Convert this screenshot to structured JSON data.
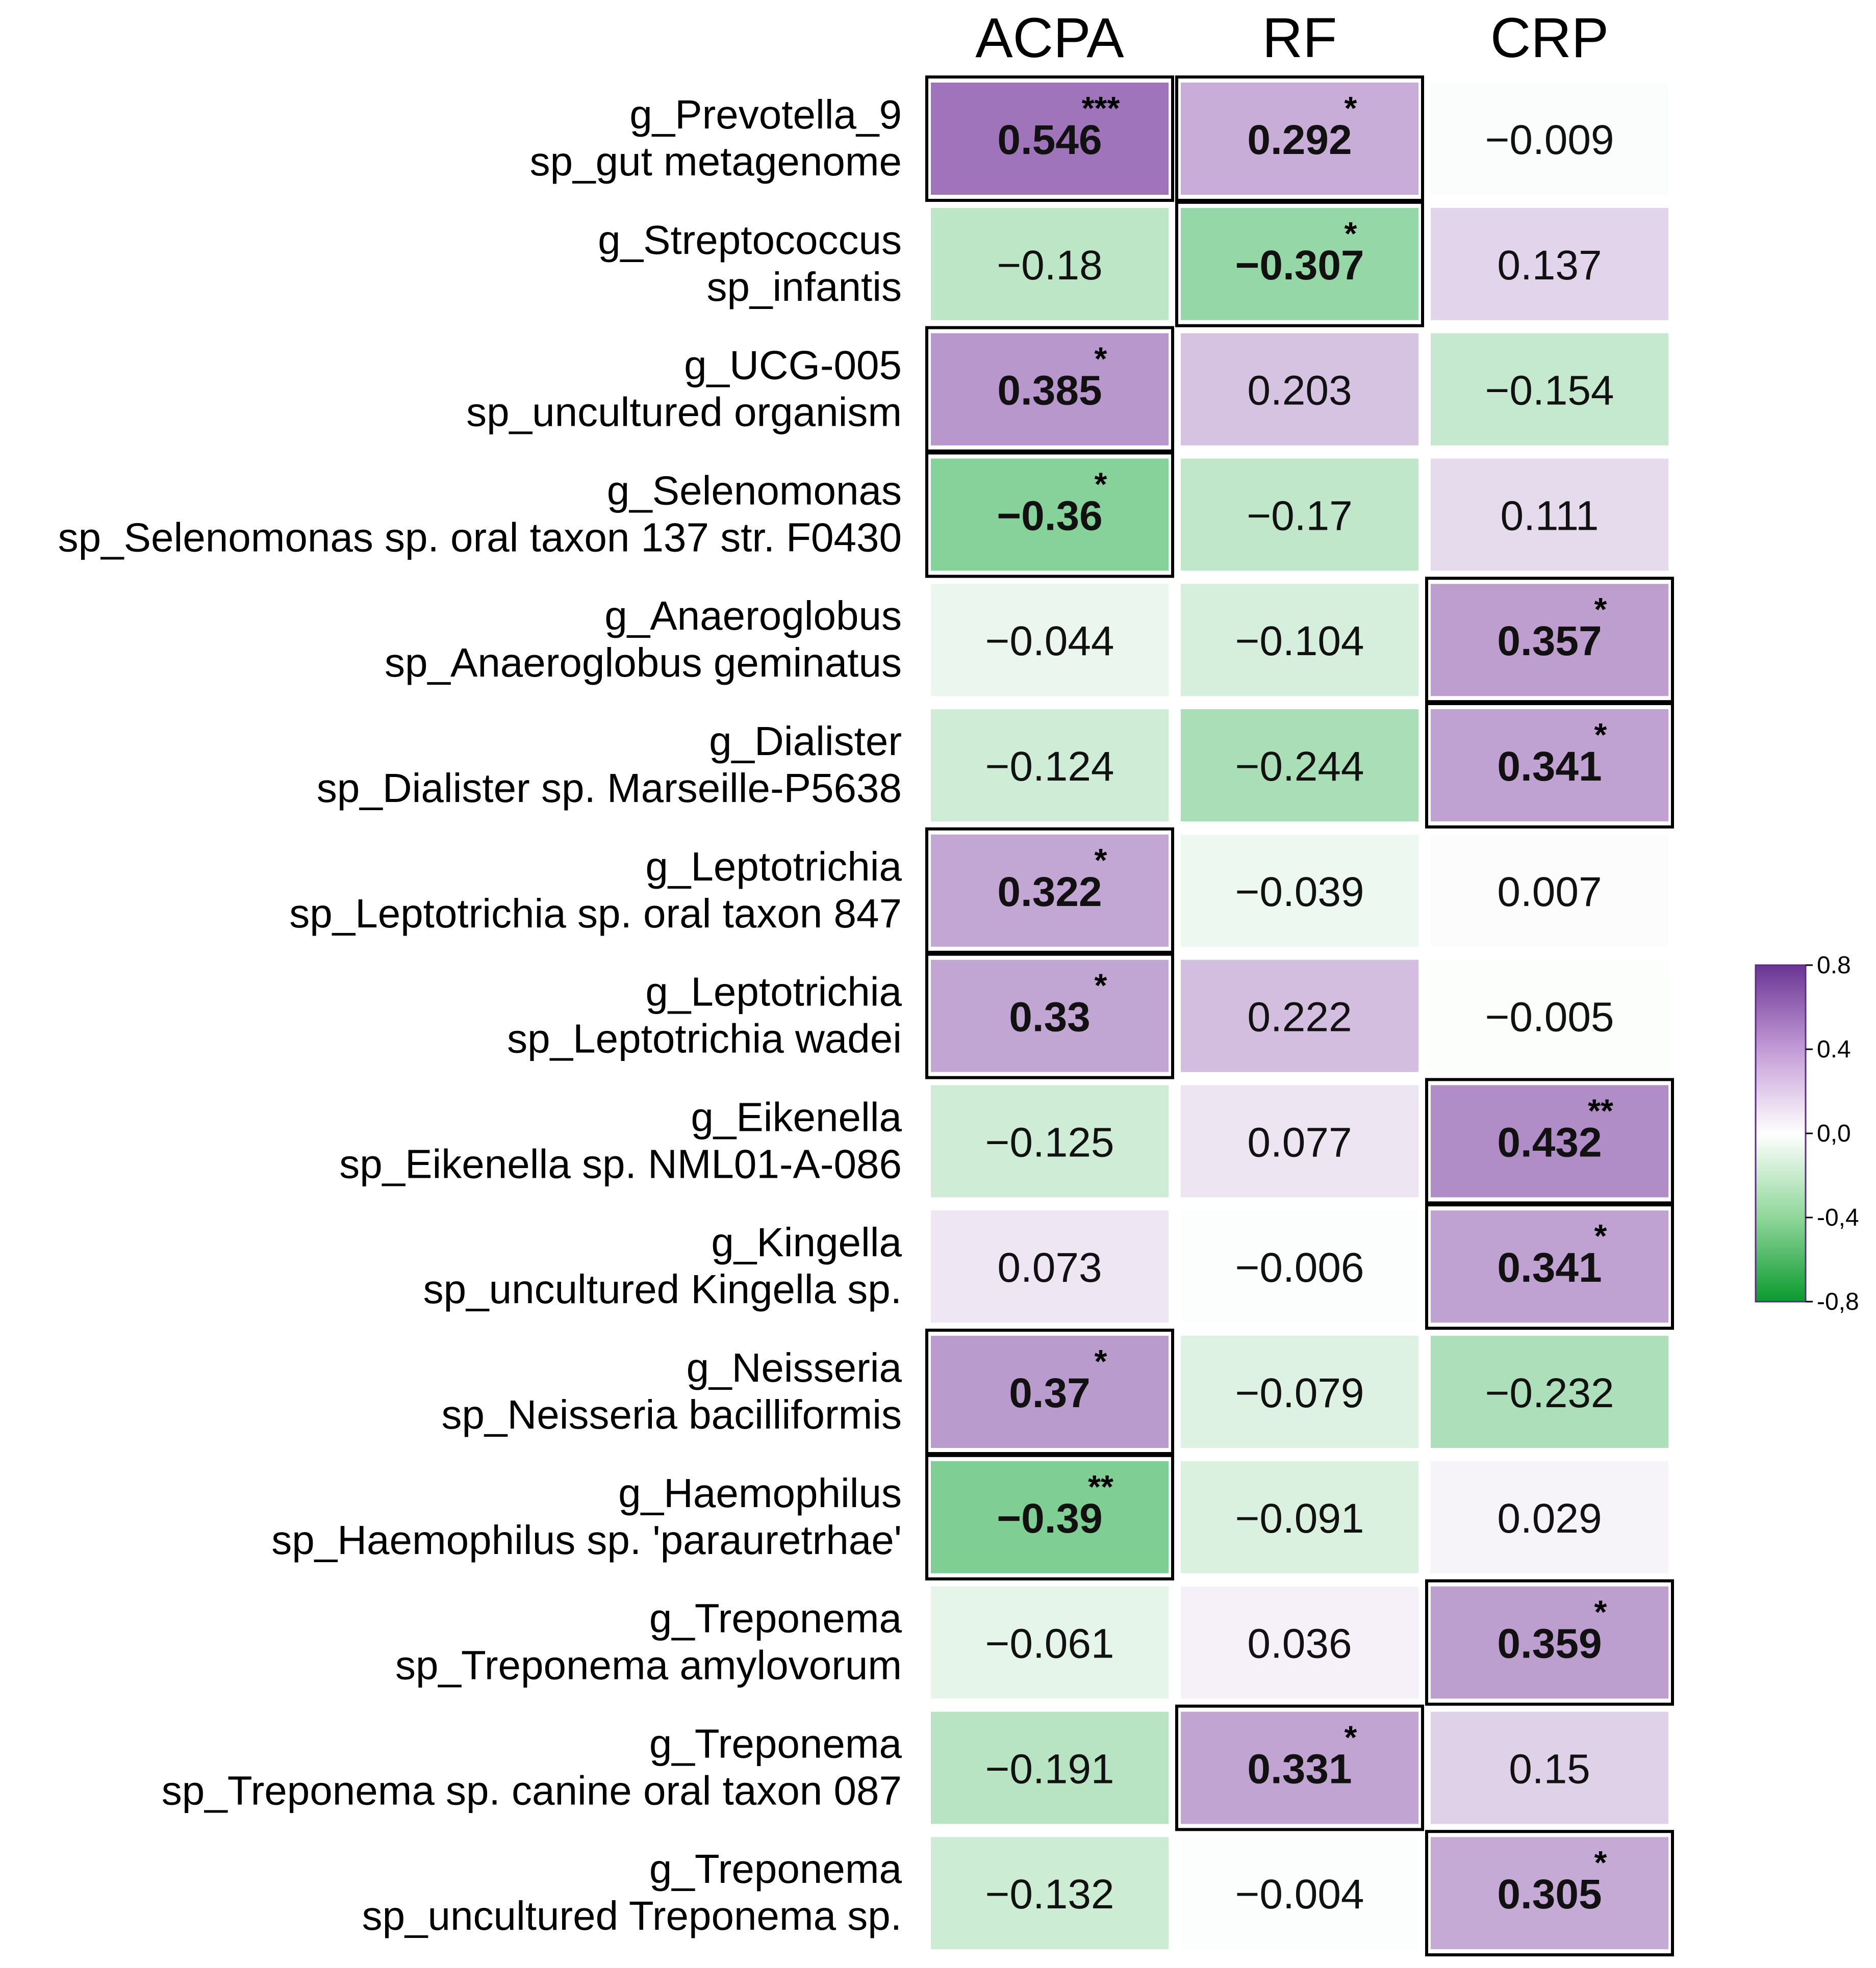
{
  "chart_data": {
    "type": "heatmap",
    "columns": [
      "ACPA",
      "RF",
      "CRP"
    ],
    "rows": [
      {
        "genus": "g_Prevotella_9",
        "species": "sp_gut metagenome",
        "values": [
          0.546,
          0.292,
          -0.009
        ],
        "labels": [
          "0.546",
          "0.292",
          "−0.009"
        ],
        "stars": [
          "***",
          "*",
          ""
        ]
      },
      {
        "genus": "g_Streptococcus",
        "species": "sp_infantis",
        "values": [
          -0.18,
          -0.307,
          0.137
        ],
        "labels": [
          "−0.18",
          "−0.307",
          "0.137"
        ],
        "stars": [
          "",
          "*",
          ""
        ]
      },
      {
        "genus": "g_UCG-005",
        "species": "sp_uncultured organism",
        "values": [
          0.385,
          0.203,
          -0.154
        ],
        "labels": [
          "0.385",
          "0.203",
          "−0.154"
        ],
        "stars": [
          "*",
          "",
          ""
        ]
      },
      {
        "genus": "g_Selenomonas",
        "species": "sp_Selenomonas sp. oral taxon 137 str. F0430",
        "values": [
          -0.36,
          -0.17,
          0.111
        ],
        "labels": [
          "−0.36",
          "−0.17",
          "0.111"
        ],
        "stars": [
          "*",
          "",
          ""
        ]
      },
      {
        "genus": "g_Anaeroglobus",
        "species": "sp_Anaeroglobus geminatus",
        "values": [
          -0.044,
          -0.104,
          0.357
        ],
        "labels": [
          "−0.044",
          "−0.104",
          "0.357"
        ],
        "stars": [
          "",
          "",
          "*"
        ]
      },
      {
        "genus": "g_Dialister",
        "species": "sp_Dialister sp. Marseille-P5638",
        "values": [
          -0.124,
          -0.244,
          0.341
        ],
        "labels": [
          "−0.124",
          "−0.244",
          "0.341"
        ],
        "stars": [
          "",
          "",
          "*"
        ]
      },
      {
        "genus": "g_Leptotrichia",
        "species": "sp_Leptotrichia sp. oral taxon 847",
        "values": [
          0.322,
          -0.039,
          0.007
        ],
        "labels": [
          "0.322",
          "−0.039",
          "0.007"
        ],
        "stars": [
          "*",
          "",
          ""
        ]
      },
      {
        "genus": "g_Leptotrichia",
        "species": "sp_Leptotrichia wadei",
        "values": [
          0.33,
          0.222,
          -0.005
        ],
        "labels": [
          "0.33",
          "0.222",
          "−0.005"
        ],
        "stars": [
          "*",
          "",
          ""
        ]
      },
      {
        "genus": "g_Eikenella",
        "species": "sp_Eikenella sp. NML01-A-086",
        "values": [
          -0.125,
          0.077,
          0.432
        ],
        "labels": [
          "−0.125",
          "0.077",
          "0.432"
        ],
        "stars": [
          "",
          "",
          "**"
        ]
      },
      {
        "genus": "g_Kingella",
        "species": "sp_uncultured Kingella sp.",
        "values": [
          0.073,
          -0.006,
          0.341
        ],
        "labels": [
          "0.073",
          "−0.006",
          "0.341"
        ],
        "stars": [
          "",
          "",
          "*"
        ]
      },
      {
        "genus": "g_Neisseria",
        "species": "sp_Neisseria bacilliformis",
        "values": [
          0.37,
          -0.079,
          -0.232
        ],
        "labels": [
          "0.37",
          "−0.079",
          "−0.232"
        ],
        "stars": [
          "*",
          "",
          ""
        ]
      },
      {
        "genus": "g_Haemophilus",
        "species": "sp_Haemophilus sp. 'parauretrhae'",
        "values": [
          -0.39,
          -0.091,
          0.029
        ],
        "labels": [
          "−0.39",
          "−0.091",
          "0.029"
        ],
        "stars": [
          "**",
          "",
          ""
        ]
      },
      {
        "genus": "g_Treponema",
        "species": "sp_Treponema amylovorum",
        "values": [
          -0.061,
          0.036,
          0.359
        ],
        "labels": [
          "−0.061",
          "0.036",
          "0.359"
        ],
        "stars": [
          "",
          "",
          "*"
        ]
      },
      {
        "genus": "g_Treponema",
        "species": "sp_Treponema sp. canine oral taxon 087",
        "values": [
          -0.191,
          0.331,
          0.15
        ],
        "labels": [
          "−0.191",
          "0.331",
          "0.15"
        ],
        "stars": [
          "",
          "*",
          ""
        ]
      },
      {
        "genus": "g_Treponema",
        "species": "sp_uncultured Treponema sp.",
        "values": [
          -0.132,
          -0.004,
          0.305
        ],
        "labels": [
          "−0.132",
          "−0.004",
          "0.305"
        ],
        "stars": [
          "",
          "",
          "*"
        ]
      }
    ],
    "colorbar": {
      "range": [
        -0.8,
        0.8
      ],
      "ticks": [
        0.8,
        0.4,
        0.0,
        -0.4,
        -0.8
      ],
      "tick_labels": [
        "0.8",
        "0.4",
        "0,0",
        "-0,4",
        "-0,8"
      ],
      "colors": {
        "high": "#7b3fa0",
        "mid": "#ffffff",
        "low": "#13a538"
      }
    }
  }
}
